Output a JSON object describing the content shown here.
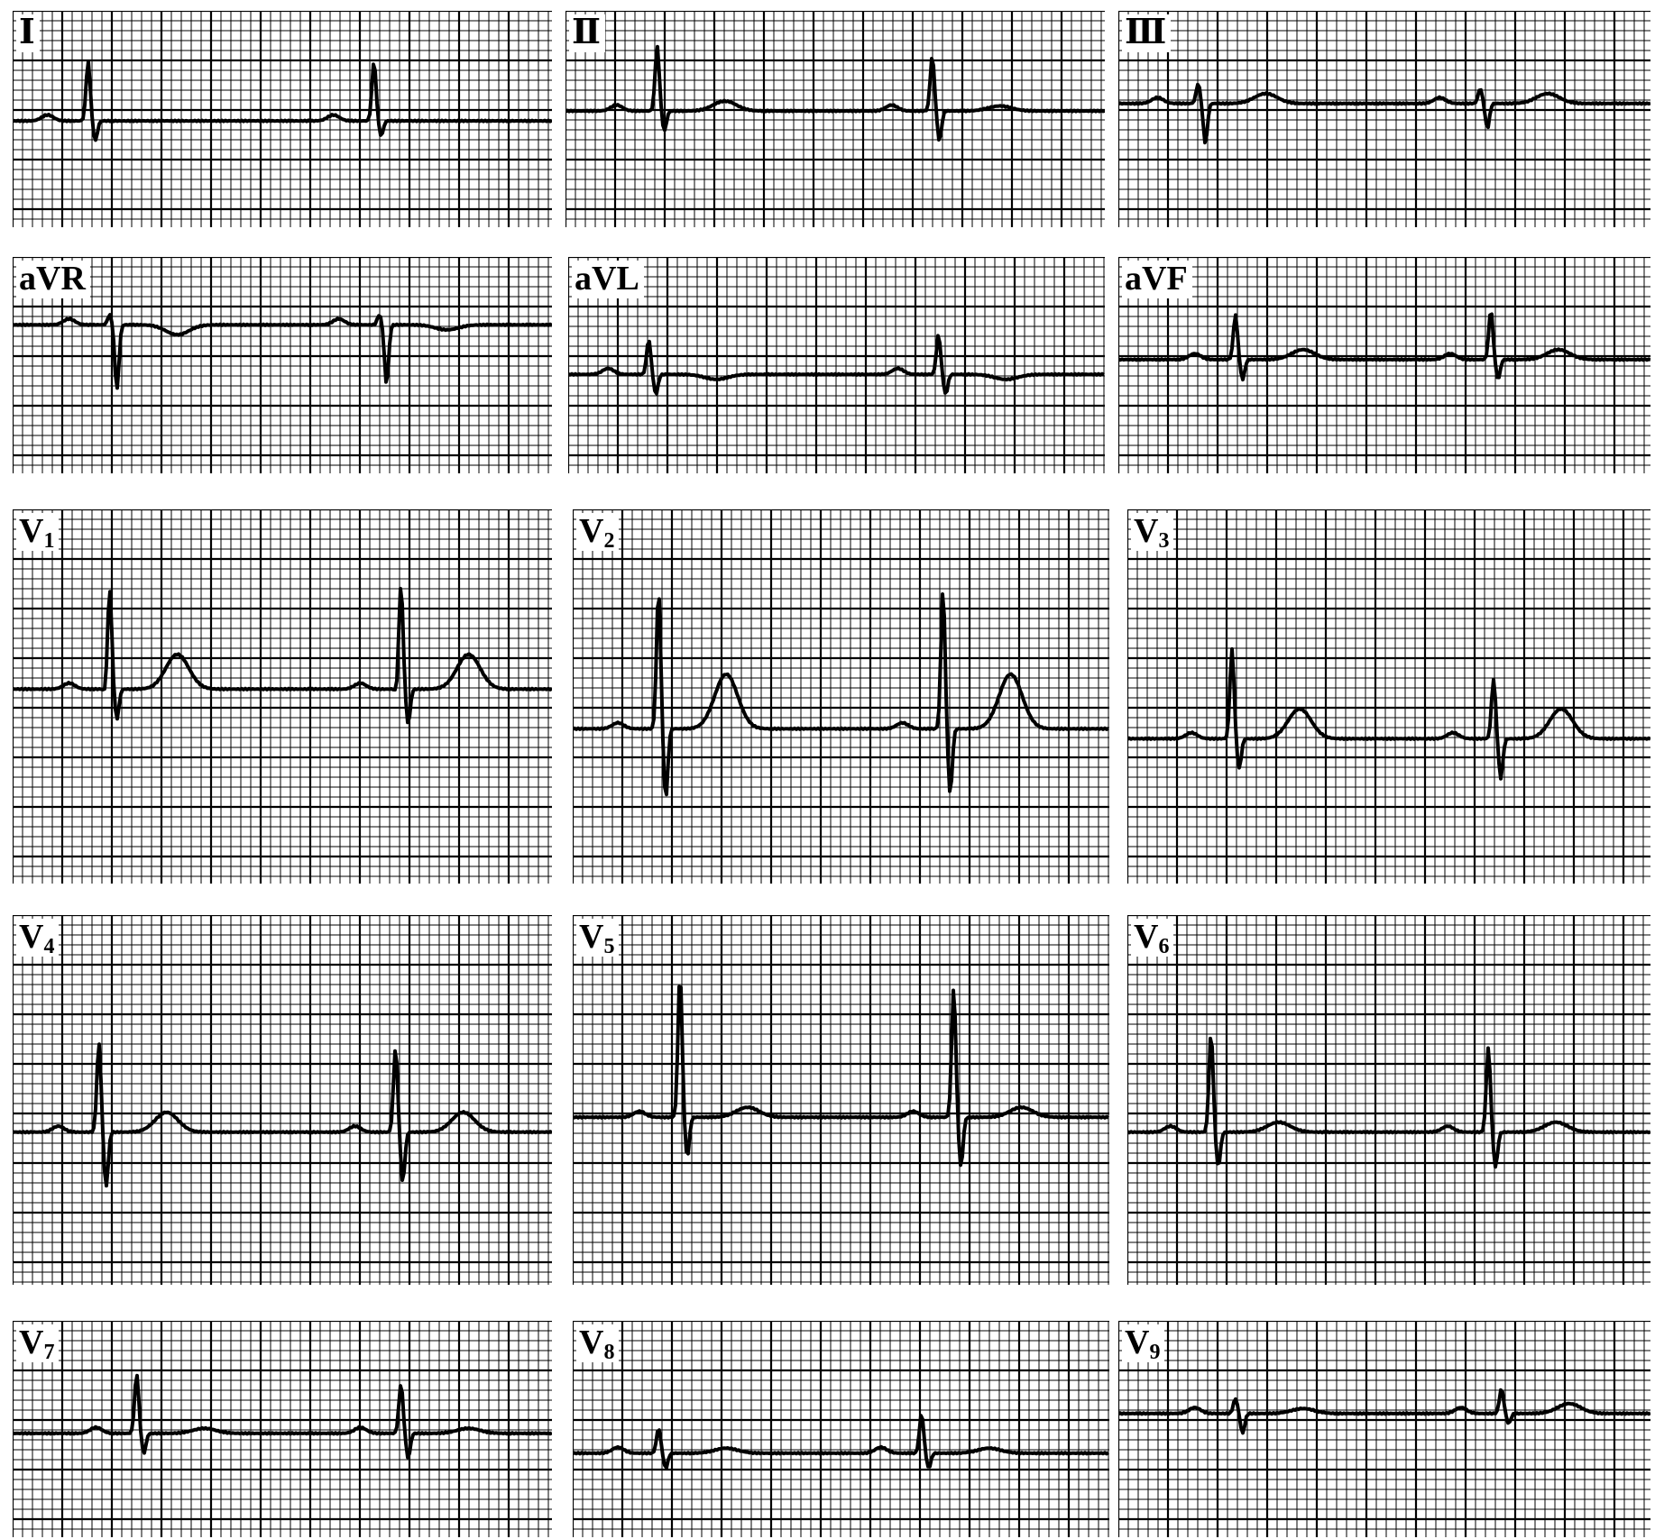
{
  "figure": {
    "panels": [
      {
        "id": "I",
        "prefix": "Ⅰ",
        "sub": "",
        "ink": "#000000",
        "baseline": 0.05,
        "beats": [
          {
            "t": 0.14,
            "r": 1.2,
            "s": -0.4,
            "q": 0,
            "twave": 0
          },
          {
            "t": 0.67,
            "r": 1.2,
            "s": -0.3,
            "q": 0,
            "twave": 0
          }
        ]
      },
      {
        "id": "II",
        "prefix": "Ⅱ",
        "sub": "",
        "ink": "#000000",
        "baseline": 0.25,
        "beats": [
          {
            "t": 0.17,
            "r": 1.3,
            "s": -0.4,
            "q": 0,
            "twave": 0.2
          },
          {
            "t": 0.68,
            "r": 1.1,
            "s": -0.6,
            "q": 0,
            "twave": 0.1
          }
        ]
      },
      {
        "id": "III",
        "prefix": "Ⅲ",
        "sub": "",
        "ink": "#000000",
        "baseline": 0.4,
        "beats": [
          {
            "t": 0.15,
            "r": 0.4,
            "s": -0.8,
            "q": 0,
            "twave": 0.2
          },
          {
            "t": 0.68,
            "r": 0.3,
            "s": -0.5,
            "q": 0,
            "twave": 0.2
          }
        ]
      },
      {
        "id": "aVR",
        "prefix": "aVR",
        "sub": "",
        "ink": "#000000",
        "baseline": 0.9,
        "beats": [
          {
            "t": 0.18,
            "r": 0.2,
            "s": -1.3,
            "q": 0,
            "twave": -0.2
          },
          {
            "t": 0.68,
            "r": 0.2,
            "s": -1.2,
            "q": 0,
            "twave": -0.1
          }
        ]
      },
      {
        "id": "aVL",
        "prefix": "aVL",
        "sub": "",
        "ink": "#000000",
        "baseline": -0.1,
        "beats": [
          {
            "t": 0.15,
            "r": 0.7,
            "s": -0.4,
            "q": 0,
            "twave": -0.1
          },
          {
            "t": 0.69,
            "r": 0.8,
            "s": -0.4,
            "q": 0,
            "twave": -0.1
          }
        ]
      },
      {
        "id": "aVF",
        "prefix": "aVF",
        "sub": "",
        "ink": "#000000",
        "baseline": 0.2,
        "beats": [
          {
            "t": 0.22,
            "r": 0.9,
            "s": -0.4,
            "q": 0,
            "twave": 0.2
          },
          {
            "t": 0.7,
            "r": 1.0,
            "s": -0.4,
            "q": 0,
            "twave": 0.2
          }
        ]
      },
      {
        "id": "V1",
        "prefix": "V",
        "sub": "1",
        "ink": "#000000",
        "baseline": 0.3,
        "beats": [
          {
            "t": 0.18,
            "r": 2.0,
            "s": -0.6,
            "q": -0.1,
            "twave": 0.7
          },
          {
            "t": 0.72,
            "r": 2.1,
            "s": -0.7,
            "q": -0.1,
            "twave": 0.7
          }
        ]
      },
      {
        "id": "V2",
        "prefix": "V",
        "sub": "2",
        "ink": "#000000",
        "baseline": -0.5,
        "beats": [
          {
            "t": 0.16,
            "r": 2.8,
            "s": -1.4,
            "q": 0,
            "twave": 1.1
          },
          {
            "t": 0.69,
            "r": 2.8,
            "s": -1.3,
            "q": 0,
            "twave": 1.1
          }
        ]
      },
      {
        "id": "V3",
        "prefix": "V",
        "sub": "3",
        "ink": "#000000",
        "baseline": -0.7,
        "beats": [
          {
            "t": 0.2,
            "r": 1.8,
            "s": -0.6,
            "q": 0,
            "twave": 0.6
          },
          {
            "t": 0.7,
            "r": 1.2,
            "s": -0.8,
            "q": 0,
            "twave": 0.6
          }
        ]
      },
      {
        "id": "V4",
        "prefix": "V",
        "sub": "4",
        "ink": "#000000",
        "baseline": -0.5,
        "beats": [
          {
            "t": 0.16,
            "r": 1.8,
            "s": -1.1,
            "q": 0,
            "twave": 0.4
          },
          {
            "t": 0.71,
            "r": 1.7,
            "s": -1.0,
            "q": 0,
            "twave": 0.4
          }
        ]
      },
      {
        "id": "V5",
        "prefix": "V",
        "sub": "5",
        "ink": "#000000",
        "baseline": -0.2,
        "beats": [
          {
            "t": 0.2,
            "r": 2.9,
            "s": -0.8,
            "q": 0,
            "twave": 0.2
          },
          {
            "t": 0.71,
            "r": 2.6,
            "s": -1.0,
            "q": 0,
            "twave": 0.2
          }
        ]
      },
      {
        "id": "V6",
        "prefix": "V",
        "sub": "6",
        "ink": "#000000",
        "baseline": -0.5,
        "beats": [
          {
            "t": 0.16,
            "r": 2.0,
            "s": -0.7,
            "q": 0,
            "twave": 0.2
          },
          {
            "t": 0.69,
            "r": 1.7,
            "s": -0.7,
            "q": 0,
            "twave": 0.2
          }
        ]
      },
      {
        "id": "V7",
        "prefix": "V",
        "sub": "7",
        "ink": "#000000",
        "baseline": 0.0,
        "beats": [
          {
            "t": 0.23,
            "r": 1.2,
            "s": -0.4,
            "q": 0,
            "twave": 0.1
          },
          {
            "t": 0.72,
            "r": 1.0,
            "s": -0.5,
            "q": 0,
            "twave": 0.1
          }
        ]
      },
      {
        "id": "V8",
        "prefix": "V",
        "sub": "8",
        "ink": "#000000",
        "baseline": -0.4,
        "beats": [
          {
            "t": 0.16,
            "r": 0.5,
            "s": -0.3,
            "q": 0,
            "twave": 0.1
          },
          {
            "t": 0.65,
            "r": 0.8,
            "s": -0.3,
            "q": 0,
            "twave": 0.1
          }
        ]
      },
      {
        "id": "V9",
        "prefix": "V",
        "sub": "9",
        "ink": "#000000",
        "baseline": 0.4,
        "beats": [
          {
            "t": 0.22,
            "r": 0.3,
            "s": -0.4,
            "q": 0,
            "twave": 0.1
          },
          {
            "t": 0.72,
            "r": 0.5,
            "s": -0.2,
            "q": 0,
            "twave": 0.2
          }
        ]
      }
    ],
    "grid": {
      "minor_color": "#000000",
      "major_color": "#000000"
    }
  }
}
